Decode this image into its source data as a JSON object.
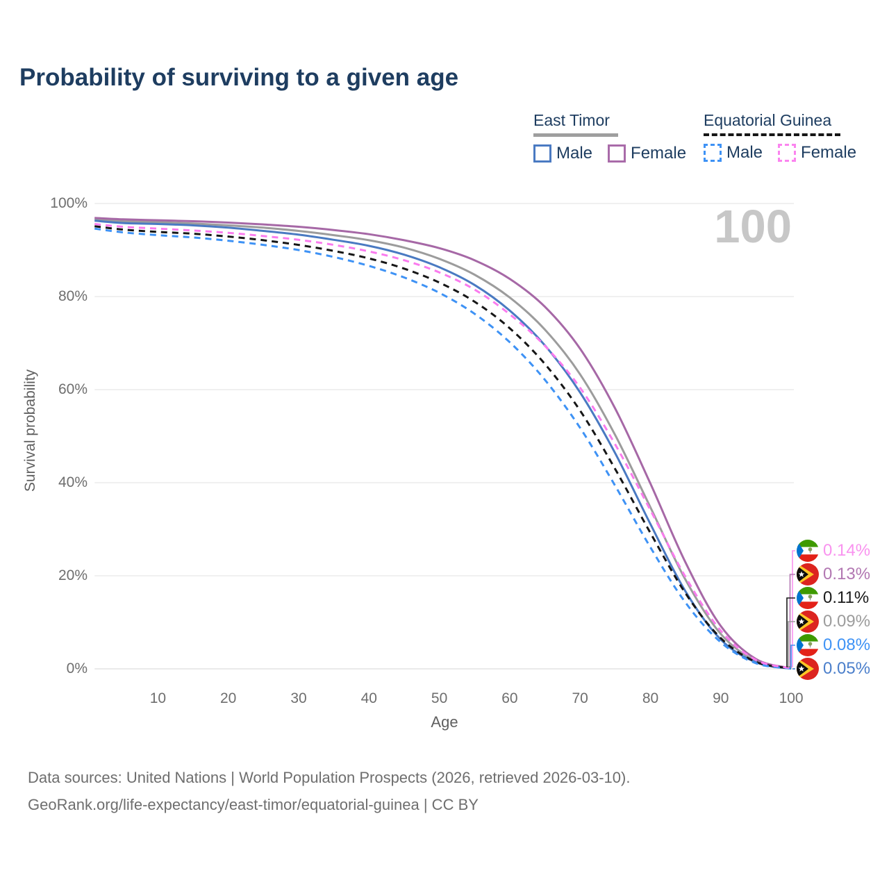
{
  "title": "Probability of surviving to a given age",
  "watermark": "100",
  "legend": {
    "groups": [
      {
        "name": "East Timor",
        "underline": "solid",
        "underline_color": "#9e9e9e",
        "items": [
          {
            "label": "Male",
            "color": "#4a7ac2",
            "dash": false
          },
          {
            "label": "Female",
            "color": "#a96ba9",
            "dash": false
          }
        ]
      },
      {
        "name": "Equatorial Guinea",
        "underline": "dashed",
        "underline_color": "#161616",
        "items": [
          {
            "label": "Male",
            "color": "#3e92f5",
            "dash": true
          },
          {
            "label": "Female",
            "color": "#fb84ef",
            "dash": true
          }
        ]
      }
    ]
  },
  "axis": {
    "xlabel": "Age",
    "ylabel": "Survival probability"
  },
  "chart_data": {
    "type": "line",
    "title": "Probability of surviving to a given age",
    "xlabel": "Age",
    "ylabel": "Survival probability",
    "xlim": [
      1,
      100
    ],
    "ylim": [
      0,
      100
    ],
    "grid": "horizontal-only",
    "x_ticks": [
      10,
      20,
      30,
      40,
      50,
      60,
      70,
      80,
      90,
      100
    ],
    "y_tick_values": [
      0,
      20,
      40,
      60,
      80,
      100
    ],
    "y_tick_labels": [
      "0%",
      "20%",
      "40%",
      "60%",
      "80%",
      "100%"
    ],
    "ages": [
      1,
      5,
      10,
      15,
      20,
      25,
      30,
      35,
      40,
      45,
      50,
      55,
      60,
      65,
      70,
      75,
      80,
      85,
      90,
      95,
      100
    ],
    "series": [
      {
        "name": "East Timor Total",
        "country": "East Timor",
        "sex": "Both",
        "style": "solid",
        "color": "#9c9c9c",
        "end_label": "0.09%",
        "values": [
          96.6,
          96.2,
          96.0,
          95.7,
          95.3,
          94.8,
          94.1,
          93.2,
          92.1,
          90.5,
          88.1,
          84.7,
          79.8,
          72.9,
          63.3,
          50.2,
          34.7,
          19.1,
          7.5,
          1.7,
          0.09
        ]
      },
      {
        "name": "East Timor Male",
        "country": "East Timor",
        "sex": "Male",
        "style": "solid",
        "color": "#4a7ac2",
        "end_label": "0.05%",
        "values": [
          96.3,
          95.8,
          95.6,
          95.3,
          94.8,
          94.1,
          93.3,
          92.2,
          90.9,
          89.0,
          86.3,
          82.5,
          77.0,
          69.5,
          59.4,
          46.3,
          31.1,
          16.6,
          6.3,
          1.4,
          0.05
        ]
      },
      {
        "name": "East Timor Female",
        "country": "East Timor",
        "sex": "Female",
        "style": "solid",
        "color": "#a668a6",
        "end_label": "0.13%",
        "values": [
          96.9,
          96.6,
          96.4,
          96.2,
          95.9,
          95.5,
          95.0,
          94.3,
          93.4,
          92.1,
          90.4,
          87.8,
          83.8,
          77.8,
          68.8,
          55.9,
          39.8,
          22.8,
          9.2,
          2.1,
          0.13
        ]
      },
      {
        "name": "Equatorial Guinea Total",
        "country": "Equatorial Guinea",
        "sex": "Both",
        "style": "dashed",
        "color": "#161616",
        "end_label": "0.11%",
        "values": [
          95.1,
          94.4,
          93.9,
          93.5,
          92.9,
          92.1,
          91.1,
          89.8,
          88.2,
          86.0,
          83.0,
          78.9,
          73.2,
          65.5,
          55.5,
          42.9,
          29.2,
          16.2,
          6.6,
          1.5,
          0.11
        ]
      },
      {
        "name": "Equatorial Guinea Male",
        "country": "Equatorial Guinea",
        "sex": "Male",
        "style": "dashed",
        "color": "#3e92f5",
        "end_label": "0.08%",
        "values": [
          94.6,
          93.8,
          93.2,
          92.7,
          92.0,
          91.1,
          90.0,
          88.5,
          86.6,
          84.1,
          80.8,
          76.3,
          70.2,
          62.1,
          51.8,
          39.3,
          26.1,
          14.2,
          5.7,
          1.2,
          0.08
        ]
      },
      {
        "name": "Equatorial Guinea Female",
        "country": "Equatorial Guinea",
        "sex": "Female",
        "style": "dashed",
        "color": "#fa7bee",
        "end_label": "0.14%",
        "values": [
          95.6,
          95.0,
          94.6,
          94.2,
          93.7,
          93.0,
          92.2,
          91.1,
          89.7,
          87.8,
          85.2,
          81.5,
          76.2,
          69.4,
          60.4,
          48.2,
          34.1,
          19.7,
          8.2,
          1.9,
          0.14
        ]
      }
    ]
  },
  "end_labels": [
    {
      "text": "0.14%",
      "color": "#f993ef",
      "flag": "equatorial-guinea",
      "series": "Equatorial Guinea Female"
    },
    {
      "text": "0.13%",
      "color": "#b277b2",
      "flag": "east-timor",
      "series": "East Timor Female"
    },
    {
      "text": "0.11%",
      "color": "#1a1a1a",
      "flag": "equatorial-guinea",
      "series": "Equatorial Guinea Total"
    },
    {
      "text": "0.09%",
      "color": "#9c9c9c",
      "flag": "east-timor",
      "series": "East Timor Total"
    },
    {
      "text": "0.08%",
      "color": "#3e92f5",
      "flag": "equatorial-guinea",
      "series": "Equatorial Guinea Male"
    },
    {
      "text": "0.05%",
      "color": "#4b7fcb",
      "flag": "east-timor",
      "series": "East Timor Male"
    }
  ],
  "footer": {
    "line1": "Data sources: United Nations | World Population Prospects (2026, retrieved 2026-03-10).",
    "line2": "GeoRank.org/life-expectancy/east-timor/equatorial-guinea | CC BY"
  },
  "colors": {
    "title": "#1e3d60",
    "gridline": "#ebebeb",
    "tick_text": "#6e6e6e",
    "watermark": "#c7c7c7",
    "footer_text": "#6e6e6e"
  }
}
